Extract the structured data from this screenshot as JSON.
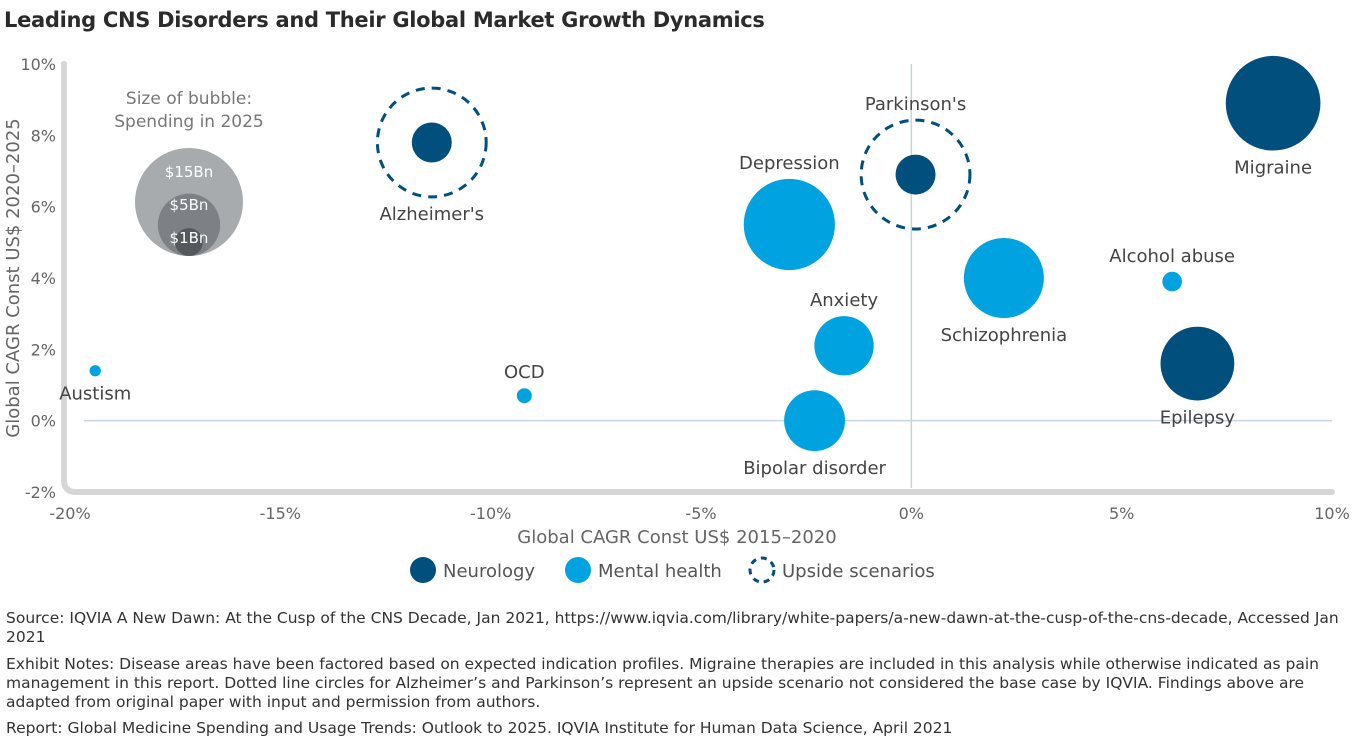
{
  "chart_data": {
    "type": "scatter",
    "title": "Leading CNS Disorders and Their Global Market Growth Dynamics",
    "xlabel": "Global CAGR Const US$ 2015–2020",
    "ylabel": "Global CAGR Const US$ 2020–2025",
    "xlim": [
      -20,
      10
    ],
    "ylim": [
      -2,
      10
    ],
    "x_ticks": [
      {
        "value": -20,
        "label": "-20%"
      },
      {
        "value": -15,
        "label": "-15%"
      },
      {
        "value": -10,
        "label": "-10%"
      },
      {
        "value": -5,
        "label": "-5%"
      },
      {
        "value": 0,
        "label": "0%"
      },
      {
        "value": 5,
        "label": "5%"
      },
      {
        "value": 10,
        "label": "10%"
      }
    ],
    "y_ticks": [
      {
        "value": -2,
        "label": "-2%"
      },
      {
        "value": 0,
        "label": "0%"
      },
      {
        "value": 2,
        "label": "2%"
      },
      {
        "value": 4,
        "label": "4%"
      },
      {
        "value": 6,
        "label": "6%"
      },
      {
        "value": 8,
        "label": "8%"
      },
      {
        "value": 10,
        "label": "10%"
      }
    ],
    "colors": {
      "neurology": "#004f7c",
      "mental_health": "#00a3e0",
      "axis": "#d6d6d6",
      "zero_line": "#c8d4dc"
    },
    "points": [
      {
        "label": "Migraine",
        "x": 8.6,
        "y": 8.9,
        "size": 14,
        "group": "neurology",
        "upside": false,
        "label_pos": "below"
      },
      {
        "label": "Parkinson's",
        "x": 0.1,
        "y": 6.9,
        "size": 2.5,
        "group": "neurology",
        "upside": true,
        "label_pos": "above"
      },
      {
        "label": "Alzheimer's",
        "x": -11.4,
        "y": 7.8,
        "size": 2.5,
        "group": "neurology",
        "upside": true,
        "label_pos": "below"
      },
      {
        "label": "Depression",
        "x": -2.9,
        "y": 5.5,
        "size": 13,
        "group": "mental_health",
        "upside": false,
        "label_pos": "above"
      },
      {
        "label": "Schizophrenia",
        "x": 2.2,
        "y": 4.0,
        "size": 10,
        "group": "mental_health",
        "upside": false,
        "label_pos": "below"
      },
      {
        "label": "Alcohol abuse",
        "x": 6.2,
        "y": 3.9,
        "size": 0.6,
        "group": "mental_health",
        "upside": false,
        "label_pos": "above"
      },
      {
        "label": "Anxiety",
        "x": -1.6,
        "y": 2.1,
        "size": 5.5,
        "group": "mental_health",
        "upside": false,
        "label_pos": "above"
      },
      {
        "label": "Epilepsy",
        "x": 6.8,
        "y": 1.6,
        "size": 8.5,
        "group": "neurology",
        "upside": false,
        "label_pos": "below"
      },
      {
        "label": "Bipolar disorder",
        "x": -2.3,
        "y": 0.0,
        "size": 5.8,
        "group": "mental_health",
        "upside": false,
        "label_pos": "below"
      },
      {
        "label": "OCD",
        "x": -9.2,
        "y": 0.7,
        "size": 0.35,
        "group": "mental_health",
        "upside": false,
        "label_pos": "above"
      },
      {
        "label": "Austism",
        "x": -19.4,
        "y": 1.4,
        "size": 0.2,
        "group": "mental_health",
        "upside": false,
        "label_pos": "below"
      }
    ],
    "size_key": {
      "title_line1": "Size of bubble:",
      "title_line2": "Spending in 2025",
      "bubbles": [
        {
          "label": "$15Bn",
          "value": 15
        },
        {
          "label": "$5Bn",
          "value": 5
        },
        {
          "label": "$1Bn",
          "value": 1
        }
      ]
    },
    "legend": [
      {
        "label": "Neurology",
        "style": "neurology"
      },
      {
        "label": "Mental health",
        "style": "mental_health"
      },
      {
        "label": "Upside scenarios",
        "style": "upside"
      }
    ]
  },
  "notes": {
    "source": "Source: IQVIA A New Dawn: At the Cusp of the CNS Decade, Jan 2021, https://www.iqvia.com/library/white-papers/a-new-dawn-at-the-cusp-of-the-cns-decade, Accessed Jan 2021",
    "exhibit": "Exhibit Notes: Disease areas have been factored based on expected indication profiles. Migraine therapies are included in this analysis while otherwise indicated as pain management in this report. Dotted line circles for Alzheimer’s and Parkinson’s represent an upside scenario not considered the base case by IQVIA. Findings above are adapted from original paper with input and permission from authors.",
    "report": "Report: Global Medicine Spending and Usage Trends: Outlook to 2025. IQVIA Institute for Human Data Science, April 2021"
  }
}
